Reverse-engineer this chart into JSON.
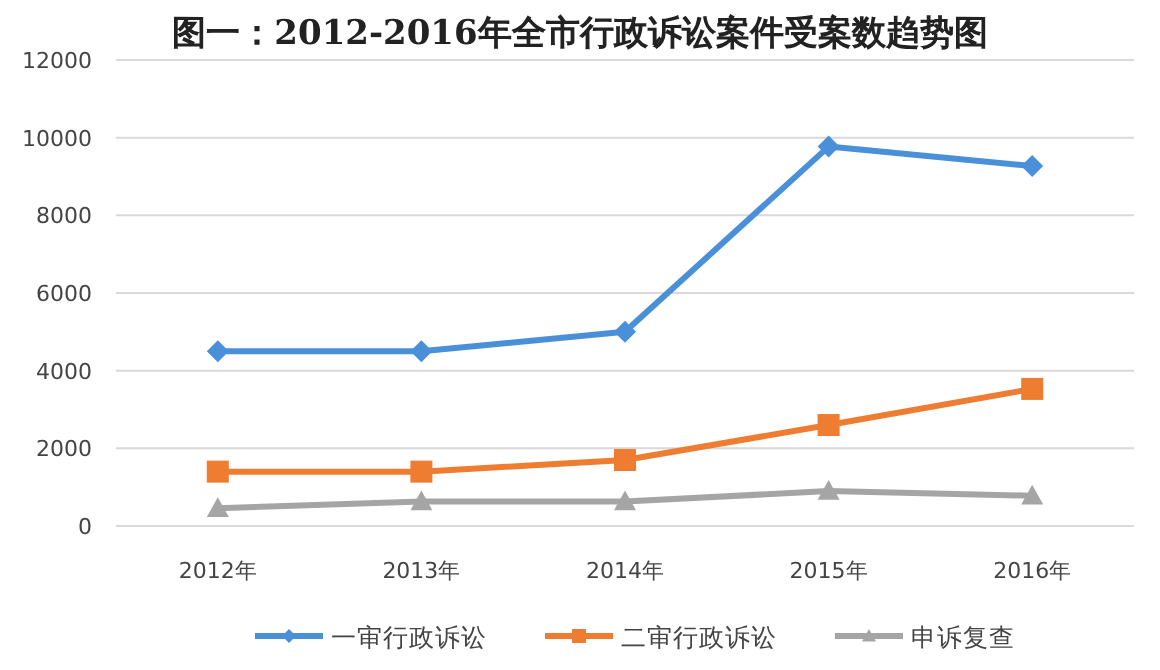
{
  "chart_data": {
    "type": "line",
    "title": "图一：2012-2016年全市行政诉讼案件受案数趋势图",
    "categories": [
      "2012年",
      "2013年",
      "2014年",
      "2015年",
      "2016年"
    ],
    "series": [
      {
        "name": "一审行政诉讼",
        "color": "#4a90d9",
        "marker": "diamond",
        "values": [
          4500,
          4500,
          5000,
          9770,
          9270
        ]
      },
      {
        "name": "二审行政诉讼",
        "color": "#ef7d31",
        "marker": "square",
        "values": [
          1400,
          1400,
          1700,
          2600,
          3530
        ]
      },
      {
        "name": "申诉复查",
        "color": "#a5a5a5",
        "marker": "triangle",
        "values": [
          460,
          630,
          630,
          900,
          780
        ]
      }
    ],
    "ylim": [
      0,
      12000
    ],
    "yticks": [
      0,
      2000,
      4000,
      6000,
      8000,
      10000,
      12000
    ],
    "grid": "y",
    "legend": "bottom"
  }
}
